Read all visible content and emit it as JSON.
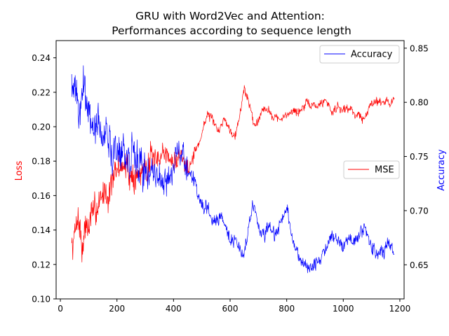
{
  "chart_data": {
    "type": "line",
    "title_line1": "GRU with Word2Vec and Attention:",
    "title_line2": "Performances according to sequence length",
    "xlabel": "",
    "xlim": [
      -15,
      1215
    ],
    "x_ticks": [
      0,
      200,
      400,
      600,
      800,
      1000,
      1200
    ],
    "left_axis": {
      "label": "Loss",
      "color": "#ff0000",
      "ylim": [
        0.1,
        0.25
      ],
      "ticks": [
        "0.10",
        "0.12",
        "0.14",
        "0.16",
        "0.18",
        "0.20",
        "0.22",
        "0.24"
      ]
    },
    "right_axis": {
      "label": "Accuracy",
      "color": "#0000ff",
      "ylim": [
        0.6185,
        0.857
      ],
      "ticks": [
        "0.65",
        "0.70",
        "0.75",
        "0.80",
        "0.85"
      ]
    },
    "series": [
      {
        "name": "MSE",
        "axis": "left",
        "color": "#ff0000",
        "anchors": [
          [
            40,
            0.13
          ],
          [
            50,
            0.136
          ],
          [
            60,
            0.15
          ],
          [
            70,
            0.14
          ],
          [
            80,
            0.128
          ],
          [
            90,
            0.145
          ],
          [
            100,
            0.14
          ],
          [
            110,
            0.15
          ],
          [
            120,
            0.148
          ],
          [
            130,
            0.155
          ],
          [
            140,
            0.158
          ],
          [
            150,
            0.16
          ],
          [
            160,
            0.165
          ],
          [
            170,
            0.158
          ],
          [
            180,
            0.17
          ],
          [
            190,
            0.168
          ],
          [
            200,
            0.175
          ],
          [
            220,
            0.178
          ],
          [
            240,
            0.175
          ],
          [
            260,
            0.17
          ],
          [
            280,
            0.172
          ],
          [
            300,
            0.178
          ],
          [
            320,
            0.182
          ],
          [
            340,
            0.178
          ],
          [
            360,
            0.186
          ],
          [
            380,
            0.183
          ],
          [
            400,
            0.178
          ],
          [
            420,
            0.184
          ],
          [
            440,
            0.18
          ],
          [
            460,
            0.179
          ],
          [
            480,
            0.186
          ],
          [
            500,
            0.196
          ],
          [
            520,
            0.208
          ],
          [
            540,
            0.202
          ],
          [
            560,
            0.198
          ],
          [
            580,
            0.205
          ],
          [
            600,
            0.198
          ],
          [
            620,
            0.196
          ],
          [
            640,
            0.212
          ],
          [
            650,
            0.222
          ],
          [
            660,
            0.218
          ],
          [
            680,
            0.205
          ],
          [
            690,
            0.2
          ],
          [
            700,
            0.205
          ],
          [
            720,
            0.212
          ],
          [
            740,
            0.208
          ],
          [
            760,
            0.206
          ],
          [
            780,
            0.203
          ],
          [
            800,
            0.207
          ],
          [
            820,
            0.21
          ],
          [
            840,
            0.208
          ],
          [
            860,
            0.212
          ],
          [
            880,
            0.213
          ],
          [
            900,
            0.212
          ],
          [
            920,
            0.213
          ],
          [
            940,
            0.216
          ],
          [
            960,
            0.208
          ],
          [
            980,
            0.212
          ],
          [
            1000,
            0.21
          ],
          [
            1020,
            0.211
          ],
          [
            1040,
            0.208
          ],
          [
            1060,
            0.206
          ],
          [
            1075,
            0.204
          ],
          [
            1090,
            0.21
          ],
          [
            1100,
            0.215
          ],
          [
            1120,
            0.215
          ],
          [
            1140,
            0.215
          ],
          [
            1160,
            0.214
          ],
          [
            1180,
            0.216
          ]
        ]
      },
      {
        "name": "Accuracy",
        "axis": "right",
        "color": "#0000ff",
        "anchors": [
          [
            40,
            0.81
          ],
          [
            50,
            0.8
          ],
          [
            60,
            0.805
          ],
          [
            70,
            0.79
          ],
          [
            80,
            0.82
          ],
          [
            90,
            0.8
          ],
          [
            100,
            0.795
          ],
          [
            110,
            0.78
          ],
          [
            120,
            0.78
          ],
          [
            130,
            0.775
          ],
          [
            140,
            0.77
          ],
          [
            150,
            0.765
          ],
          [
            160,
            0.775
          ],
          [
            170,
            0.76
          ],
          [
            180,
            0.755
          ],
          [
            190,
            0.76
          ],
          [
            200,
            0.76
          ],
          [
            220,
            0.75
          ],
          [
            240,
            0.745
          ],
          [
            260,
            0.75
          ],
          [
            280,
            0.745
          ],
          [
            300,
            0.735
          ],
          [
            320,
            0.74
          ],
          [
            340,
            0.735
          ],
          [
            360,
            0.73
          ],
          [
            380,
            0.725
          ],
          [
            400,
            0.74
          ],
          [
            420,
            0.755
          ],
          [
            440,
            0.745
          ],
          [
            460,
            0.735
          ],
          [
            480,
            0.72
          ],
          [
            500,
            0.705
          ],
          [
            520,
            0.7
          ],
          [
            540,
            0.69
          ],
          [
            560,
            0.695
          ],
          [
            580,
            0.69
          ],
          [
            600,
            0.675
          ],
          [
            620,
            0.67
          ],
          [
            640,
            0.662
          ],
          [
            650,
            0.66
          ],
          [
            660,
            0.675
          ],
          [
            680,
            0.705
          ],
          [
            690,
            0.7
          ],
          [
            700,
            0.685
          ],
          [
            720,
            0.675
          ],
          [
            740,
            0.685
          ],
          [
            760,
            0.675
          ],
          [
            780,
            0.69
          ],
          [
            800,
            0.7
          ],
          [
            820,
            0.675
          ],
          [
            840,
            0.66
          ],
          [
            860,
            0.65
          ],
          [
            880,
            0.645
          ],
          [
            900,
            0.65
          ],
          [
            920,
            0.655
          ],
          [
            940,
            0.665
          ],
          [
            960,
            0.68
          ],
          [
            980,
            0.67
          ],
          [
            1000,
            0.668
          ],
          [
            1020,
            0.675
          ],
          [
            1040,
            0.67
          ],
          [
            1060,
            0.68
          ],
          [
            1075,
            0.685
          ],
          [
            1090,
            0.675
          ],
          [
            1100,
            0.665
          ],
          [
            1120,
            0.66
          ],
          [
            1140,
            0.662
          ],
          [
            1160,
            0.668
          ],
          [
            1180,
            0.66
          ]
        ]
      }
    ],
    "legends": [
      {
        "entry": "Accuracy",
        "position": "upper-right"
      },
      {
        "entry": "MSE",
        "position": "center-right"
      }
    ]
  }
}
